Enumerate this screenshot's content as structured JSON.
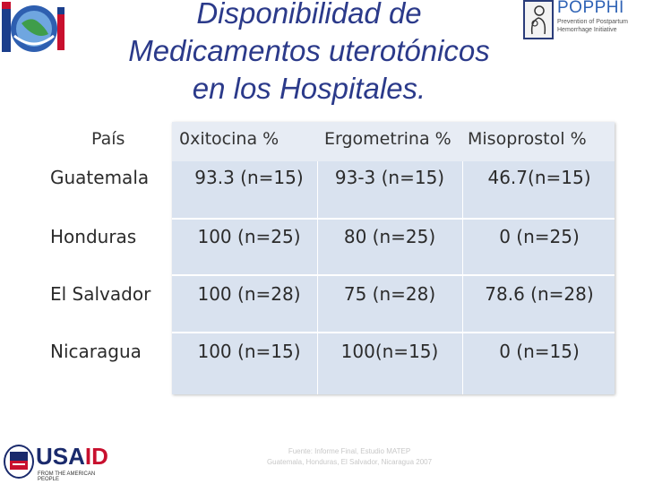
{
  "title": {
    "line1": "Disponibilidad de",
    "line2": "Medicamentos uterotónicos",
    "line3": "en los Hospitales."
  },
  "logos": {
    "right_name": "POPPHI",
    "right_sub1": "Prevention of Postpartum",
    "right_sub2": "Hemorrhage Initiative",
    "usaid_usa": "USA",
    "usaid_id": "ID",
    "usaid_sub": "FROM THE AMERICAN PEOPLE"
  },
  "table": {
    "headers": [
      "País",
      "0xitocina %",
      "Ergometrina %",
      "Misoprostol %"
    ],
    "rows": [
      {
        "country": "Guatemala",
        "oxitocina": "93.3 (n=15)",
        "ergometrina": "93-3  (n=15)",
        "misoprostol": "46.7(n=15)"
      },
      {
        "country": "Honduras",
        "oxitocina": "100 (n=25)",
        "ergometrina": "80 (n=25)",
        "misoprostol": "0 (n=25)"
      },
      {
        "country": "El Salvador",
        "oxitocina": "100 (n=28)",
        "ergometrina": "75 (n=28)",
        "misoprostol": "78.6 (n=28)"
      },
      {
        "country": "Nicaragua",
        "oxitocina": "100 (n=15)",
        "ergometrina": "100(n=15)",
        "misoprostol": "0 (n=15)"
      }
    ]
  },
  "source": {
    "line1": "Fuente: Informe Final, Estudio MATEP",
    "line2": "Guatemala, Honduras, El Salvador, Nicaragua 2007"
  },
  "colors": {
    "title": "#2b3a8a",
    "table_fill": "#d9e2ef",
    "usaid_blue": "#1a2a6c",
    "usaid_red": "#c8102e"
  }
}
